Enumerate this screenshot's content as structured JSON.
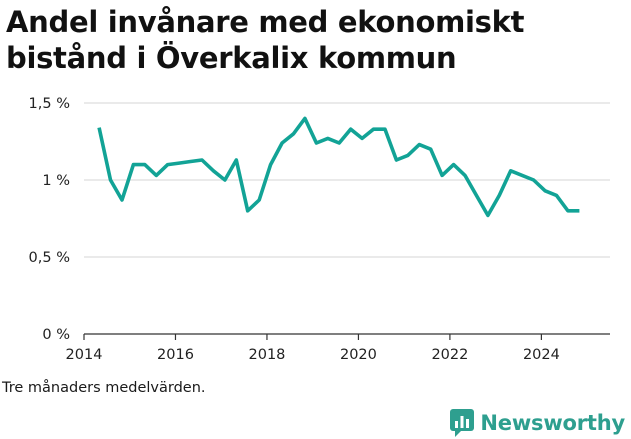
{
  "title": "Andel invånare med ekonomiskt bistånd i Överkalix kommun",
  "footnote": "Tre månaders medelvärden.",
  "brand": {
    "name": "Newsworthy",
    "icon": "bar-chart-speech-bubble-icon",
    "color": "#2e9f8f"
  },
  "chart_data": {
    "type": "line",
    "xlabel": "",
    "ylabel": "",
    "xlim": [
      2014,
      2025.5
    ],
    "ylim": [
      0,
      1.5
    ],
    "x_ticks": [
      {
        "value": 2014,
        "label": "2014"
      },
      {
        "value": 2016,
        "label": "2016"
      },
      {
        "value": 2018,
        "label": "2018"
      },
      {
        "value": 2020,
        "label": "2020"
      },
      {
        "value": 2022,
        "label": "2022"
      },
      {
        "value": 2024,
        "label": "2024"
      }
    ],
    "y_ticks": [
      {
        "value": 0,
        "label": "0 %"
      },
      {
        "value": 0.5,
        "label": "0,5 %"
      },
      {
        "value": 1,
        "label": "1 %"
      },
      {
        "value": 1.5,
        "label": "1,5 %"
      }
    ],
    "grid": true,
    "line_color": "#12a396",
    "series": [
      {
        "x": [
          2014.33,
          2014.58,
          2014.83,
          2015.08,
          2015.33,
          2015.58,
          2015.83,
          2016.08,
          2016.33,
          2016.58,
          2016.83,
          2017.08,
          2017.33,
          2017.58,
          2017.83,
          2018.08,
          2018.33,
          2018.58,
          2018.83,
          2019.08,
          2019.33,
          2019.58,
          2019.83,
          2020.08,
          2020.33,
          2020.58,
          2020.83,
          2021.08,
          2021.33,
          2021.58,
          2021.83,
          2022.08,
          2022.33,
          2022.58,
          2022.83,
          2023.08,
          2023.33,
          2023.58,
          2023.83,
          2024.08,
          2024.33,
          2024.58,
          2024.83
        ],
        "y": [
          1.34,
          1.0,
          0.87,
          1.1,
          1.1,
          1.03,
          1.1,
          1.11,
          1.12,
          1.13,
          1.06,
          1.0,
          1.13,
          0.8,
          0.87,
          1.1,
          1.24,
          1.3,
          1.4,
          1.24,
          1.27,
          1.24,
          1.33,
          1.27,
          1.33,
          1.33,
          1.13,
          1.16,
          1.23,
          1.2,
          1.03,
          1.1,
          1.03,
          0.9,
          0.77,
          0.9,
          1.06,
          1.03,
          1.0,
          0.93,
          0.9,
          0.8,
          0.8
        ]
      }
    ]
  }
}
